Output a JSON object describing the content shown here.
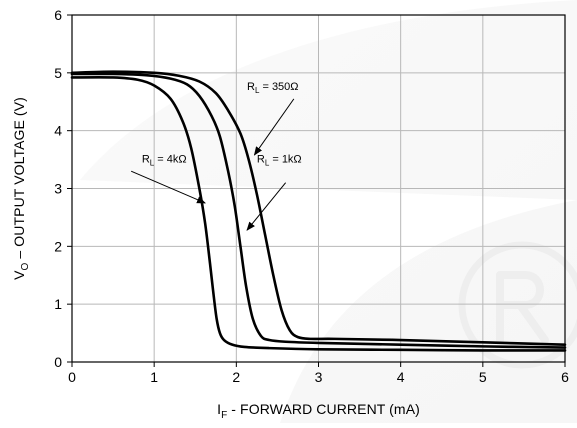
{
  "chart_data": {
    "type": "line",
    "xlabel": {
      "symbol": "I",
      "subscript": "F",
      "rest": " - FORWARD CURRENT (mA)"
    },
    "ylabel": {
      "symbol": "V",
      "subscript": "O",
      "rest": " – OUTPUT VOLTAGE (V)"
    },
    "xlim": [
      0,
      6
    ],
    "ylim": [
      0,
      6
    ],
    "xticks": [
      0,
      1,
      2,
      3,
      4,
      5,
      6
    ],
    "yticks": [
      0,
      1,
      2,
      3,
      4,
      5,
      6
    ],
    "xtick_labels": [
      "0",
      "1",
      "2",
      "3",
      "4",
      "5",
      "6"
    ],
    "ytick_labels": [
      "0",
      "1",
      "2",
      "3",
      "4",
      "5",
      "6"
    ],
    "grid": true,
    "series": [
      {
        "name": {
          "symbol": "R",
          "subscript": "L",
          "rest": " = 4kΩ"
        },
        "x": [
          0,
          0.5,
          0.8,
          1.0,
          1.2,
          1.35,
          1.45,
          1.55,
          1.62,
          1.68,
          1.72,
          1.76,
          1.8,
          1.85,
          1.95,
          2.1,
          2.4,
          3.0,
          4.0,
          5.0,
          6.0
        ],
        "y": [
          4.92,
          4.92,
          4.88,
          4.78,
          4.55,
          4.15,
          3.7,
          3.0,
          2.4,
          1.7,
          1.2,
          0.75,
          0.5,
          0.38,
          0.3,
          0.26,
          0.24,
          0.22,
          0.21,
          0.2,
          0.2
        ]
      },
      {
        "name": {
          "symbol": "R",
          "subscript": "L",
          "rest": " = 1kΩ"
        },
        "x": [
          0,
          0.5,
          0.9,
          1.2,
          1.4,
          1.55,
          1.7,
          1.8,
          1.9,
          1.98,
          2.05,
          2.12,
          2.2,
          2.3,
          2.4,
          2.6,
          3.0,
          4.0,
          5.0,
          6.0
        ],
        "y": [
          4.98,
          4.98,
          4.96,
          4.9,
          4.8,
          4.6,
          4.25,
          3.9,
          3.3,
          2.7,
          2.0,
          1.3,
          0.75,
          0.45,
          0.38,
          0.35,
          0.33,
          0.3,
          0.27,
          0.25
        ]
      },
      {
        "name": {
          "symbol": "R",
          "subscript": "L",
          "rest": " = 350Ω"
        },
        "x": [
          0,
          0.5,
          1.0,
          1.3,
          1.55,
          1.75,
          1.9,
          2.05,
          2.15,
          2.25,
          2.35,
          2.45,
          2.55,
          2.65,
          2.75,
          2.9,
          3.2,
          4.0,
          5.0,
          6.0
        ],
        "y": [
          5.0,
          5.02,
          5.0,
          4.95,
          4.85,
          4.65,
          4.35,
          3.95,
          3.5,
          2.9,
          2.2,
          1.5,
          0.9,
          0.55,
          0.43,
          0.4,
          0.4,
          0.38,
          0.34,
          0.3
        ]
      }
    ],
    "annotations": [
      {
        "series": 0,
        "text_x": 0.85,
        "text_y": 3.45,
        "arrow_from": [
          0.72,
          3.3
        ],
        "arrow_to": [
          1.62,
          2.75
        ]
      },
      {
        "series": 1,
        "text_x": 2.25,
        "text_y": 3.45,
        "arrow_from": [
          2.6,
          3.1
        ],
        "arrow_to": [
          2.13,
          2.28
        ]
      },
      {
        "series": 2,
        "text_x": 2.13,
        "text_y": 4.7,
        "arrow_from": [
          2.7,
          4.55
        ],
        "arrow_to": [
          2.22,
          3.58
        ]
      }
    ]
  }
}
